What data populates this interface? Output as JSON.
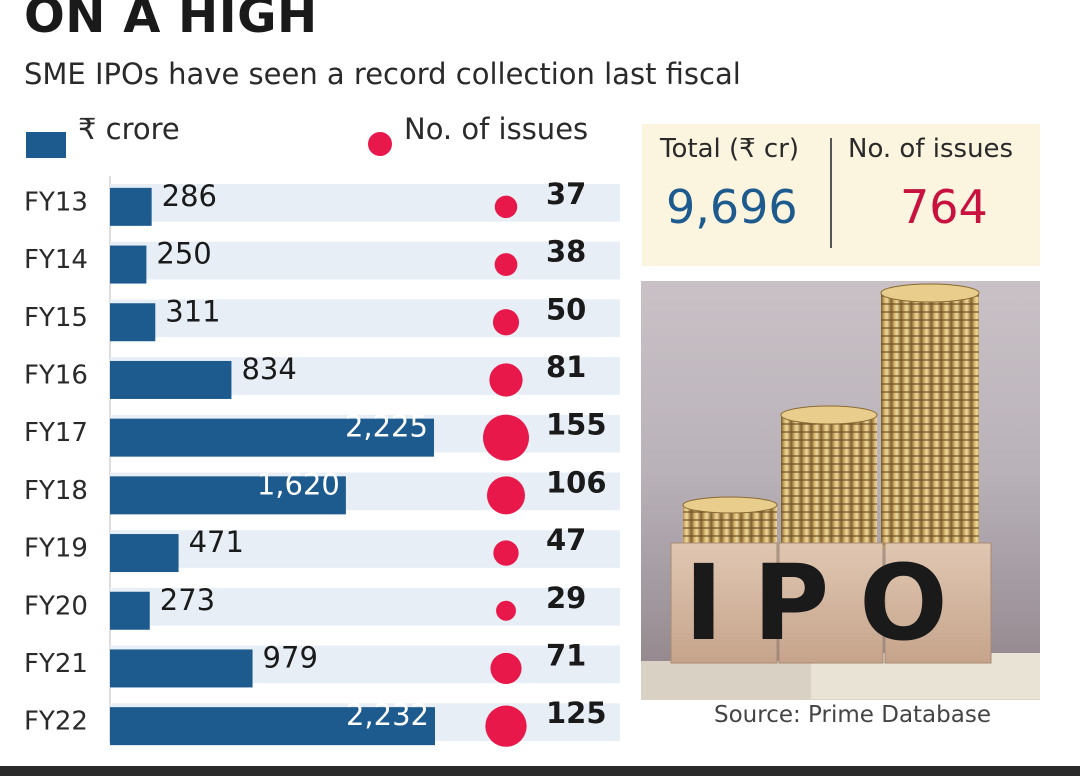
{
  "header": {
    "title": "ON A HIGH",
    "subtitle": "SME IPOs have seen a record collection last fiscal"
  },
  "legend": {
    "bar_label": "₹ crore",
    "dot_label": "No. of issues"
  },
  "totals": {
    "amount_header": "Total (₹ cr)",
    "amount_value": "9,696",
    "issues_header": "No. of issues",
    "issues_value": "764"
  },
  "image": {
    "caption_text": "IPO"
  },
  "source": "Source: Prime Database",
  "colors": {
    "bar": "#1d5a8e",
    "dot": "#e8194a",
    "row_band": "#e7eef6",
    "total_amount": "#1d5a8e",
    "total_issues": "#c8113f"
  },
  "chart_data": {
    "type": "bar",
    "orientation": "horizontal",
    "categories": [
      "FY13",
      "FY14",
      "FY15",
      "FY16",
      "FY17",
      "FY18",
      "FY19",
      "FY20",
      "FY21",
      "FY22"
    ],
    "series": [
      {
        "name": "₹ crore",
        "values": [
          286,
          250,
          311,
          834,
          2225,
          1620,
          471,
          273,
          979,
          2232
        ],
        "labels": [
          "286",
          "250",
          "311",
          "834",
          "2,225",
          "1,620",
          "471",
          "273",
          "979",
          "2,232"
        ]
      },
      {
        "name": "No. of issues",
        "values": [
          37,
          38,
          50,
          81,
          155,
          106,
          47,
          29,
          71,
          125
        ],
        "labels": [
          "37",
          "38",
          "50",
          "81",
          "155",
          "106",
          "47",
          "29",
          "71",
          "125"
        ]
      }
    ]
  }
}
